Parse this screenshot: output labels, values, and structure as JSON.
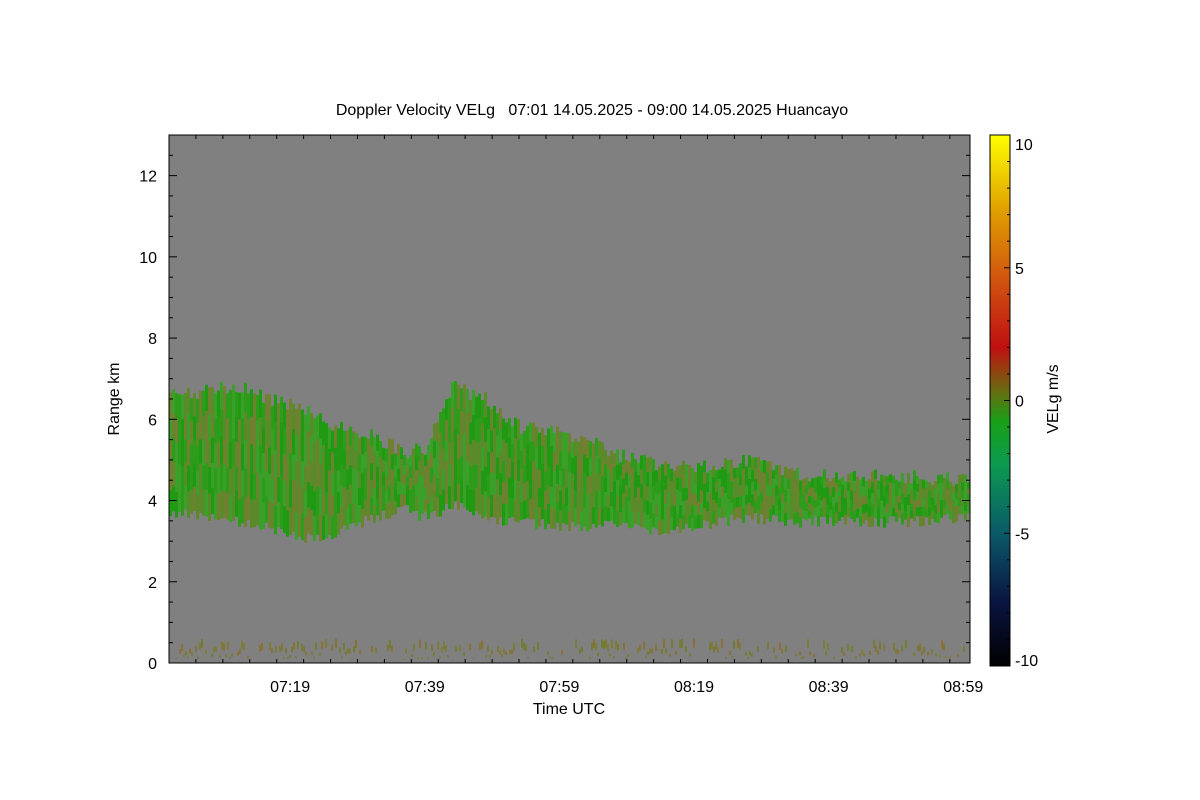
{
  "chart_data": {
    "type": "heatmap",
    "title": "Doppler Velocity VELg   07:01 14.05.2025 - 09:00 14.05.2025 Huancayo",
    "xlabel": "Time UTC",
    "ylabel": "Range km",
    "x_range_minutes": [
      421,
      540
    ],
    "x_ticks": [
      {
        "minute": 439,
        "label": "07:19"
      },
      {
        "minute": 459,
        "label": "07:39"
      },
      {
        "minute": 479,
        "label": "07:59"
      },
      {
        "minute": 499,
        "label": "08:19"
      },
      {
        "minute": 519,
        "label": "08:39"
      },
      {
        "minute": 539,
        "label": "08:59"
      }
    ],
    "ylim": [
      0,
      13
    ],
    "y_ticks": [
      {
        "value": 0,
        "label": "0"
      },
      {
        "value": 2,
        "label": "2"
      },
      {
        "value": 4,
        "label": "4"
      },
      {
        "value": 6,
        "label": "6"
      },
      {
        "value": 8,
        "label": "8"
      },
      {
        "value": 10,
        "label": "10"
      },
      {
        "value": 12,
        "label": "12"
      }
    ],
    "colorbar": {
      "label": "VELg m/s",
      "range": [
        -10,
        10
      ],
      "ticks": [
        {
          "value": 10,
          "label": "10"
        },
        {
          "value": 5,
          "label": "5"
        },
        {
          "value": 0,
          "label": "0"
        },
        {
          "value": -5,
          "label": "-5"
        },
        {
          "value": -10,
          "label": "-10"
        }
      ]
    },
    "background_color": "#808080",
    "cloud_layer": {
      "dominant_velocity_ms": -1.5,
      "colors": [
        "#1f9a12",
        "#2d9c1b",
        "#5a8a2a",
        "#6f8030",
        "#3aa02a"
      ],
      "top_km": [
        6.6,
        6.7,
        6.8,
        6.5,
        6.3,
        5.8,
        5.6,
        5.2,
        5.3,
        6.8,
        6.5,
        5.8,
        5.7,
        5.5,
        5.1,
        4.9,
        4.8,
        4.9,
        5.0,
        4.7,
        4.6,
        4.6,
        4.6,
        4.5
      ],
      "base_km": [
        3.7,
        3.6,
        3.5,
        3.3,
        3.1,
        3.2,
        3.6,
        3.8,
        3.6,
        3.9,
        3.6,
        3.5,
        3.4,
        3.4,
        3.4,
        3.3,
        3.4,
        3.5,
        3.6,
        3.5,
        3.5,
        3.5,
        3.5,
        3.6
      ],
      "minutes": [
        421,
        426,
        431,
        436,
        441,
        446,
        451,
        456,
        459,
        463,
        468,
        473,
        478,
        483,
        488,
        493,
        498,
        503,
        508,
        513,
        518,
        523,
        530,
        540
      ]
    },
    "ground_clutter": {
      "top_km": 0.5,
      "colors": [
        "#6e7d2a",
        "#8a6e2a",
        "#7a7a30"
      ]
    }
  }
}
